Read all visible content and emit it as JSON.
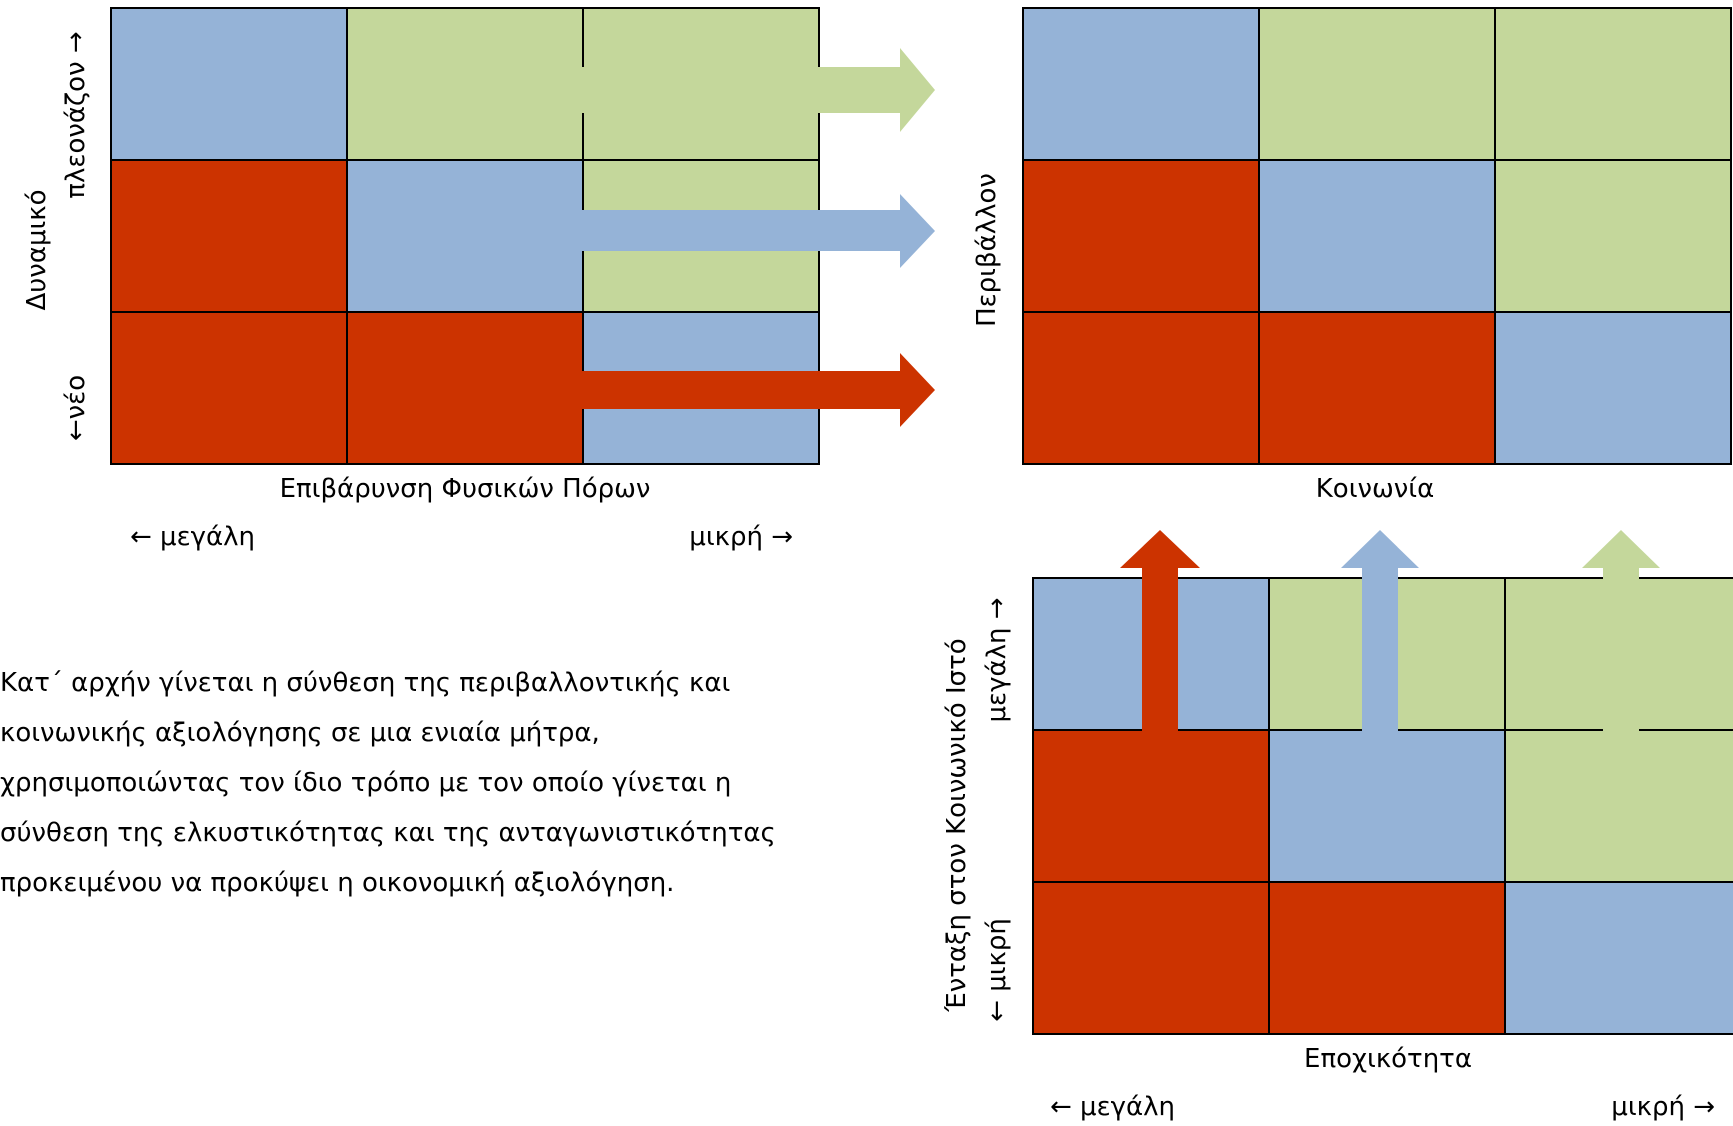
{
  "colors": {
    "red": "#cc3300",
    "blue": "#95b3d7",
    "green": "#c4d79b",
    "border": "#000000"
  },
  "matrix_cells": [
    [
      "blue",
      "green",
      "green"
    ],
    [
      "red",
      "blue",
      "green"
    ],
    [
      "red",
      "red",
      "blue"
    ]
  ],
  "top_left": {
    "y_label": "Δυναμικό",
    "y_high": "πλεονάζον →",
    "y_low": "←νέο",
    "x_label": "Επιβάρυνση Φυσικών Πόρων",
    "x_left": "← μεγάλη",
    "x_right": "μικρή →"
  },
  "top_right": {
    "y_label": "Περιβάλλον",
    "x_label": "Κοινωνία"
  },
  "bottom_right": {
    "y_label": "Ένταξη στον Κοινωνικό Ιστό",
    "y_high": "μεγάλη →",
    "y_low": "← μικρή",
    "x_label": "Εποχικότητα",
    "x_left": "← μεγάλη",
    "x_right": "μικρή →"
  },
  "paragraph_lines": [
    "Κατ΄ αρχήν γίνεται η σύνθεση της περιβαλλοντικής και",
    "κοινωνικής αξιολόγησης σε μια ενιαία μήτρα,",
    "χρησιμοποιώντας τον ίδιο τρόπο με τον οποίο γίνεται η",
    "σύνθεση της ελκυστικότητας και της ανταγωνιστικότητας",
    "προκειμένου να προκύψει η οικονομική αξιολόγηση."
  ]
}
